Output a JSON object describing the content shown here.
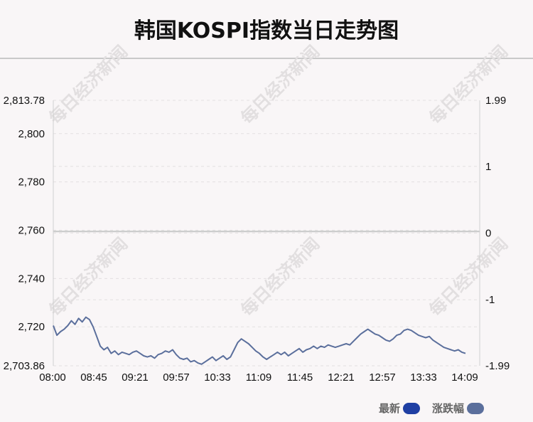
{
  "title": "韩国KOSPI指数当日走势图",
  "watermark": "每日经济新闻",
  "chart_data": {
    "type": "line",
    "y_left": {
      "ylim": [
        2703.86,
        2813.78
      ],
      "ticks": [
        2813.78,
        2800,
        2780,
        2760,
        2740,
        2720,
        2703.86
      ],
      "tick_labels": [
        "2,813.78",
        "2,800",
        "2,780",
        "2,760",
        "2,740",
        "2,720",
        "2,703.86"
      ]
    },
    "y_right": {
      "ylim": [
        -1.99,
        1.99
      ],
      "ticks": [
        1.99,
        1,
        0,
        -1,
        -1.99
      ],
      "tick_labels": [
        "1.99",
        "1",
        "0",
        "-1",
        "-1.99"
      ]
    },
    "baseline": 2759.5,
    "x_tick_labels": [
      "08:00",
      "08:45",
      "09:21",
      "09:57",
      "10:33",
      "11:09",
      "11:45",
      "12:21",
      "12:57",
      "13:33",
      "14:09"
    ],
    "grid": true,
    "legend_position": "bottom-right",
    "series": [
      {
        "name": "最新",
        "color": "#1f3fa3",
        "values": [
          [
            0,
            2720.5
          ],
          [
            1,
            2716.5
          ],
          [
            2,
            2718
          ],
          [
            3,
            2719
          ],
          [
            4,
            2720.5
          ],
          [
            5,
            2722.5
          ],
          [
            6,
            2721
          ],
          [
            7,
            2723.5
          ],
          [
            8,
            2722
          ],
          [
            9,
            2724
          ],
          [
            10,
            2723
          ],
          [
            11,
            2720
          ],
          [
            12,
            2716
          ],
          [
            13,
            2712
          ],
          [
            14,
            2710.5
          ],
          [
            15,
            2711.5
          ],
          [
            16,
            2709
          ],
          [
            17,
            2710
          ],
          [
            18,
            2708.5
          ],
          [
            19,
            2709.5
          ],
          [
            20,
            2709
          ],
          [
            21,
            2708.5
          ],
          [
            22,
            2709.5
          ],
          [
            23,
            2710
          ],
          [
            24,
            2709
          ],
          [
            25,
            2708
          ],
          [
            26,
            2707.5
          ],
          [
            27,
            2708
          ],
          [
            28,
            2707
          ],
          [
            29,
            2708.5
          ],
          [
            30,
            2709
          ],
          [
            31,
            2710
          ],
          [
            32,
            2709.5
          ],
          [
            33,
            2710.5
          ],
          [
            34,
            2708.5
          ],
          [
            35,
            2707
          ],
          [
            36,
            2706.5
          ],
          [
            37,
            2707
          ],
          [
            38,
            2705.5
          ],
          [
            39,
            2706
          ],
          [
            40,
            2705
          ],
          [
            41,
            2704.5
          ],
          [
            42,
            2705.5
          ],
          [
            43,
            2706.5
          ],
          [
            44,
            2707.5
          ],
          [
            45,
            2706
          ],
          [
            46,
            2707
          ],
          [
            47,
            2708
          ],
          [
            48,
            2706.5
          ],
          [
            49,
            2707.5
          ],
          [
            50,
            2710.5
          ],
          [
            51,
            2713.5
          ],
          [
            52,
            2715
          ],
          [
            53,
            2714
          ],
          [
            54,
            2713
          ],
          [
            55,
            2711.5
          ],
          [
            56,
            2710
          ],
          [
            57,
            2709
          ],
          [
            58,
            2707.5
          ],
          [
            59,
            2706.5
          ],
          [
            60,
            2707.5
          ],
          [
            61,
            2708.5
          ],
          [
            62,
            2709.5
          ],
          [
            63,
            2708.5
          ],
          [
            64,
            2709.5
          ],
          [
            65,
            2708
          ],
          [
            66,
            2709
          ],
          [
            67,
            2710
          ],
          [
            68,
            2711
          ],
          [
            69,
            2709.5
          ],
          [
            70,
            2710.5
          ],
          [
            71,
            2711
          ],
          [
            72,
            2712
          ],
          [
            73,
            2711
          ],
          [
            74,
            2712
          ],
          [
            75,
            2711.5
          ],
          [
            76,
            2712.5
          ],
          [
            77,
            2712
          ],
          [
            78,
            2711.5
          ],
          [
            79,
            2712
          ],
          [
            80,
            2712.5
          ],
          [
            81,
            2713
          ],
          [
            82,
            2712.5
          ],
          [
            83,
            2714
          ],
          [
            84,
            2715.5
          ],
          [
            85,
            2717
          ],
          [
            86,
            2718
          ],
          [
            87,
            2719
          ],
          [
            88,
            2718
          ],
          [
            89,
            2717
          ],
          [
            90,
            2716.5
          ],
          [
            91,
            2715.5
          ],
          [
            92,
            2714.5
          ],
          [
            93,
            2714
          ],
          [
            94,
            2715
          ],
          [
            95,
            2716.5
          ],
          [
            96,
            2717
          ],
          [
            97,
            2718.5
          ],
          [
            98,
            2719
          ],
          [
            99,
            2718.5
          ],
          [
            100,
            2717.5
          ],
          [
            101,
            2716.5
          ],
          [
            102,
            2716
          ],
          [
            103,
            2715.5
          ],
          [
            104,
            2716
          ],
          [
            105,
            2714.5
          ],
          [
            106,
            2713.5
          ],
          [
            107,
            2712.5
          ],
          [
            108,
            2711.5
          ],
          [
            109,
            2711
          ],
          [
            110,
            2710.5
          ],
          [
            111,
            2710
          ],
          [
            112,
            2710.5
          ],
          [
            113,
            2709.5
          ],
          [
            114,
            2709
          ]
        ]
      },
      {
        "name": "涨跌幅",
        "color": "#5b6f9c"
      }
    ]
  },
  "legend": [
    {
      "label": "最新",
      "color": "#1f3fa3"
    },
    {
      "label": "涨跌幅",
      "color": "#5b6f9c"
    }
  ]
}
